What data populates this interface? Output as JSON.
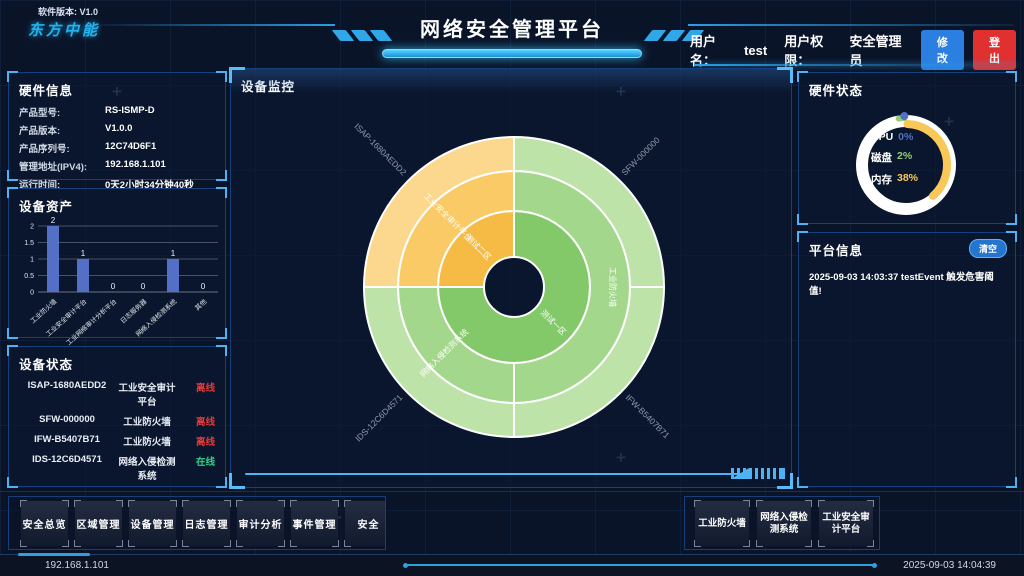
{
  "header": {
    "version_label": "软件版本: V1.0",
    "logo": "东方中能",
    "title": "网络安全管理平台",
    "username_label": "用户名：",
    "username": "test",
    "role_label": "用户权限：",
    "role": "安全管理员",
    "edit_button": "修改",
    "logout_button": "登出"
  },
  "hardware_info": {
    "title": "硬件信息",
    "rows": [
      {
        "label": "产品型号:",
        "value": "RS-ISMP-D"
      },
      {
        "label": "产品版本:",
        "value": "V1.0.0"
      },
      {
        "label": "产品序列号:",
        "value": "12C74D6F1"
      },
      {
        "label": "管理地址(IPV4):",
        "value": "192.168.1.101"
      },
      {
        "label": "运行时间:",
        "value": "0天2小时34分钟40秒"
      }
    ]
  },
  "device_assets": {
    "title": "设备资产"
  },
  "device_monitor": {
    "title": "设备监控"
  },
  "hardware_status": {
    "title": "硬件状态"
  },
  "device_status": {
    "title": "设备状态",
    "rows": [
      {
        "id": "ISAP-1680AEDD2",
        "name": "工业安全审计平台",
        "status": "离线",
        "online": false
      },
      {
        "id": "SFW-000000",
        "name": "工业防火墙",
        "status": "离线",
        "online": false
      },
      {
        "id": "IFW-B5407B71",
        "name": "工业防火墙",
        "status": "离线",
        "online": false
      },
      {
        "id": "IDS-12C6D4571",
        "name": "网络入侵检测系统",
        "status": "在线",
        "online": true
      }
    ]
  },
  "platform_info": {
    "title": "平台信息",
    "clear_button": "清空",
    "messages": [
      "2025-09-03 14:03:37 testEvent 触发危害阈值!"
    ]
  },
  "nav": {
    "left_buttons": [
      "安全总览",
      "区域管理",
      "设备管理",
      "日志管理",
      "审计分析",
      "事件管理",
      "安全"
    ],
    "right_buttons": [
      "工业防火墙",
      "网络入侵检测系统",
      "工业安全审计平台"
    ]
  },
  "status_bar": {
    "ip": "192.168.1.101",
    "datetime": "2025-09-03 14:04:39"
  },
  "colors": {
    "accent": "#2fb7ef",
    "panel_border": "#16407c",
    "online": "#35d08a",
    "offline": "#e23b3b",
    "edit_button_bg": "#2b7fe0",
    "logout_button_bg": "#e03030",
    "bar": "#5470c6",
    "cpu": "#5470c6",
    "disk": "#91cc75",
    "memory": "#fac858"
  },
  "chart_data": [
    {
      "type": "bar",
      "title": "设备资产",
      "categories": [
        "工业防火墙",
        "工业安全审计平台",
        "工业网络审计分析平台",
        "日志服务器",
        "网络入侵检测系统",
        "其他"
      ],
      "values": [
        2,
        1,
        0,
        0,
        1,
        0
      ],
      "ylim": [
        0,
        2
      ],
      "yticks": [
        0,
        0.5,
        1,
        1.5,
        2
      ],
      "bar_color": "#5470c6",
      "grid": true,
      "xlabel": "",
      "ylabel": ""
    },
    {
      "type": "sunburst",
      "title": "设备监控",
      "inside_label_color": "#ffffff",
      "outside_label_color": "#8d99ab",
      "stroke": "#ffffff",
      "hole_radius": 30,
      "rings": [
        {
          "r0": 30,
          "r1": 76,
          "label_pos": "inside",
          "segments": [
            {
              "label": "测试一区",
              "start": 0,
              "end": 270,
              "color": "#83c969"
            },
            {
              "label": "测试二区",
              "start": 270,
              "end": 360,
              "color": "#f6bb45"
            }
          ]
        },
        {
          "r0": 76,
          "r1": 116,
          "label_pos": "inside",
          "segments": [
            {
              "label": "工业防火墙",
              "start": 0,
              "end": 180,
              "color": "#a3d78b",
              "rotate": 90
            },
            {
              "label": "网络入侵检测系统",
              "start": 180,
              "end": 270,
              "color": "#a3d78b"
            },
            {
              "label": "工业安全审计平台",
              "start": 270,
              "end": 360,
              "color": "#f9ca66"
            }
          ]
        },
        {
          "r0": 116,
          "r1": 150,
          "label_pos": "outside",
          "segments": [
            {
              "label": "SFW-000000",
              "start": 0,
              "end": 90,
              "color": "#bde3a9"
            },
            {
              "label": "IFW-B5407B71",
              "start": 90,
              "end": 180,
              "color": "#bde3a9"
            },
            {
              "label": "IDS-12C6D4571",
              "start": 180,
              "end": 270,
              "color": "#bde3a9"
            },
            {
              "label": "ISAP-1680AEDD2",
              "start": 270,
              "end": 360,
              "color": "#fbd88e"
            }
          ]
        }
      ]
    },
    {
      "type": "donut-gauge",
      "title": "硬件状态",
      "ring_color": "#ffffff",
      "metrics": [
        {
          "label": "CPU",
          "value": "0%",
          "pct": 0,
          "color": "#5470c6"
        },
        {
          "label": "磁盘",
          "value": "2%",
          "pct": 2,
          "color": "#91cc75"
        },
        {
          "label": "内存",
          "value": "38%",
          "pct": 38,
          "color": "#fac858"
        }
      ]
    }
  ]
}
